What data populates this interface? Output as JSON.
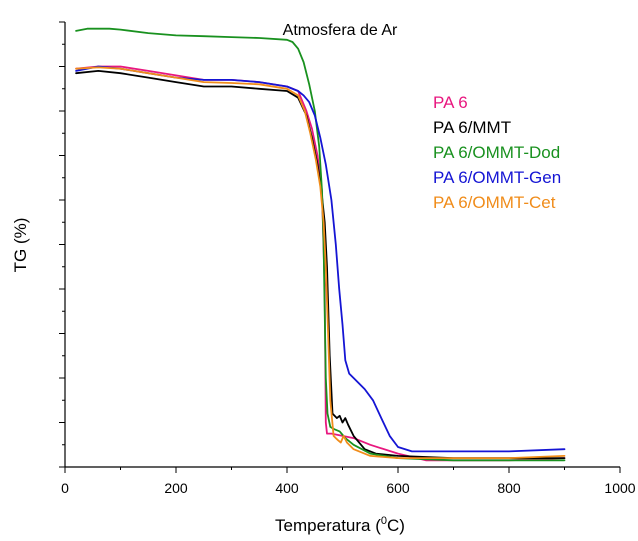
{
  "chart_data": {
    "type": "line",
    "title": "Atmosfera de Ar",
    "xlabel": "Temperatura (",
    "xlabel_sup": "0",
    "xlabel_suffix": "C)",
    "ylabel": "TG (%)",
    "xlim": [
      0,
      1000
    ],
    "ylim": [
      0,
      100
    ],
    "x_ticks": [
      0,
      200,
      400,
      600,
      800,
      1000
    ],
    "x_tick_labels": [
      "0",
      "200",
      "400",
      "600",
      "800",
      "1000"
    ],
    "y_tick_labels_shown": false,
    "grid": false,
    "legend_position": "top-right",
    "series": [
      {
        "name": "PA 6",
        "color": "#e8177f",
        "points": [
          [
            20,
            89.5
          ],
          [
            60,
            90
          ],
          [
            100,
            90
          ],
          [
            150,
            89
          ],
          [
            200,
            88
          ],
          [
            250,
            87
          ],
          [
            300,
            87
          ],
          [
            350,
            86.5
          ],
          [
            400,
            85.5
          ],
          [
            420,
            84.5
          ],
          [
            435,
            80
          ],
          [
            445,
            76
          ],
          [
            455,
            70
          ],
          [
            463,
            62
          ],
          [
            468,
            40
          ],
          [
            470,
            10
          ],
          [
            472,
            7.5
          ],
          [
            480,
            7.5
          ],
          [
            500,
            7
          ],
          [
            520,
            6.5
          ],
          [
            550,
            5
          ],
          [
            600,
            3
          ],
          [
            650,
            1.5
          ],
          [
            700,
            1.5
          ],
          [
            800,
            1.5
          ],
          [
            900,
            2
          ]
        ]
      },
      {
        "name": "PA 6/MMT",
        "color": "#000000",
        "points": [
          [
            20,
            88.5
          ],
          [
            60,
            89
          ],
          [
            100,
            88.5
          ],
          [
            150,
            87.5
          ],
          [
            200,
            86.5
          ],
          [
            250,
            85.5
          ],
          [
            300,
            85.5
          ],
          [
            350,
            85
          ],
          [
            400,
            84.5
          ],
          [
            420,
            83
          ],
          [
            435,
            79
          ],
          [
            445,
            74
          ],
          [
            455,
            68
          ],
          [
            462,
            62
          ],
          [
            468,
            55
          ],
          [
            472,
            45
          ],
          [
            477,
            25
          ],
          [
            482,
            12
          ],
          [
            490,
            11
          ],
          [
            495,
            11.5
          ],
          [
            500,
            10
          ],
          [
            505,
            11
          ],
          [
            510,
            9.5
          ],
          [
            520,
            7
          ],
          [
            540,
            4
          ],
          [
            560,
            3
          ],
          [
            600,
            2.5
          ],
          [
            700,
            2
          ],
          [
            800,
            2
          ],
          [
            900,
            2
          ]
        ]
      },
      {
        "name": "PA 6/OMMT-Dod",
        "color": "#19911f",
        "points": [
          [
            20,
            98
          ],
          [
            40,
            98.5
          ],
          [
            80,
            98.5
          ],
          [
            100,
            98.3
          ],
          [
            150,
            97.5
          ],
          [
            200,
            97
          ],
          [
            250,
            96.8
          ],
          [
            300,
            96.6
          ],
          [
            350,
            96.4
          ],
          [
            400,
            96
          ],
          [
            410,
            95.5
          ],
          [
            420,
            94
          ],
          [
            430,
            91
          ],
          [
            440,
            86
          ],
          [
            450,
            80
          ],
          [
            458,
            72
          ],
          [
            463,
            62
          ],
          [
            466,
            50
          ],
          [
            468,
            35
          ],
          [
            470,
            20
          ],
          [
            473,
            12
          ],
          [
            478,
            9
          ],
          [
            485,
            8.5
          ],
          [
            495,
            8
          ],
          [
            505,
            6.5
          ],
          [
            520,
            5
          ],
          [
            550,
            3
          ],
          [
            600,
            2
          ],
          [
            700,
            1.5
          ],
          [
            800,
            1.5
          ],
          [
            900,
            1.5
          ]
        ]
      },
      {
        "name": "PA 6/OMMT-Gen",
        "color": "#1515d4",
        "points": [
          [
            20,
            89
          ],
          [
            60,
            90
          ],
          [
            100,
            89.5
          ],
          [
            150,
            88.5
          ],
          [
            200,
            87.5
          ],
          [
            250,
            87
          ],
          [
            300,
            87
          ],
          [
            350,
            86.5
          ],
          [
            400,
            85.5
          ],
          [
            420,
            84.5
          ],
          [
            430,
            83.5
          ],
          [
            440,
            82
          ],
          [
            450,
            79
          ],
          [
            460,
            74
          ],
          [
            470,
            68
          ],
          [
            480,
            60
          ],
          [
            488,
            50
          ],
          [
            494,
            40
          ],
          [
            500,
            32
          ],
          [
            505,
            24
          ],
          [
            512,
            21
          ],
          [
            520,
            20
          ],
          [
            540,
            17.5
          ],
          [
            555,
            15
          ],
          [
            570,
            11
          ],
          [
            585,
            7
          ],
          [
            600,
            4.5
          ],
          [
            625,
            3.5
          ],
          [
            700,
            3.5
          ],
          [
            800,
            3.5
          ],
          [
            900,
            4
          ]
        ]
      },
      {
        "name": "PA 6/OMMT-Cet",
        "color": "#f08c1a",
        "points": [
          [
            20,
            89.5
          ],
          [
            60,
            89.8
          ],
          [
            100,
            89.5
          ],
          [
            150,
            88.5
          ],
          [
            200,
            87.5
          ],
          [
            250,
            86.5
          ],
          [
            300,
            86.3
          ],
          [
            350,
            86
          ],
          [
            400,
            85
          ],
          [
            420,
            83.5
          ],
          [
            432,
            80
          ],
          [
            442,
            75
          ],
          [
            452,
            69
          ],
          [
            460,
            63
          ],
          [
            466,
            55
          ],
          [
            470,
            45
          ],
          [
            474,
            30
          ],
          [
            478,
            15
          ],
          [
            484,
            7
          ],
          [
            488,
            6.5
          ],
          [
            492,
            6
          ],
          [
            497,
            5.5
          ],
          [
            502,
            7
          ],
          [
            508,
            5.5
          ],
          [
            520,
            4
          ],
          [
            550,
            2.5
          ],
          [
            600,
            2
          ],
          [
            700,
            2
          ],
          [
            800,
            2
          ],
          [
            900,
            2.5
          ]
        ]
      }
    ]
  }
}
